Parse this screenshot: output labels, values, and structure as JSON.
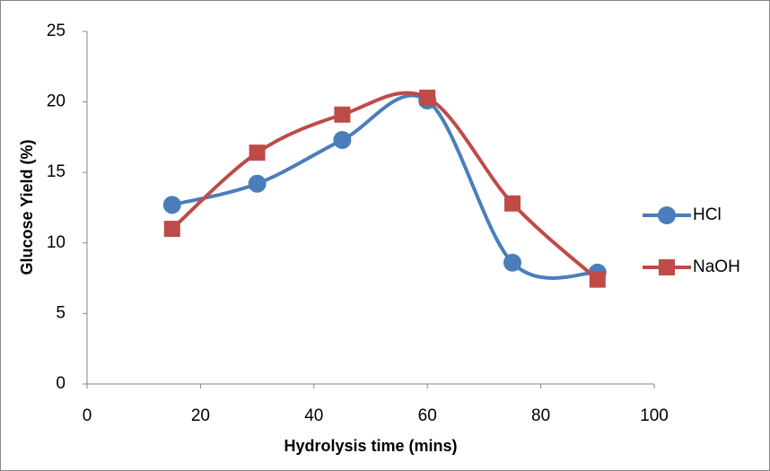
{
  "chart_data": {
    "type": "line",
    "x_label": "Hydrolysis time (mins)",
    "y_label": "Glucose Yield (%)",
    "x": [
      15,
      30,
      45,
      60,
      75,
      90
    ],
    "series": [
      {
        "name": "HCl",
        "color": "#4a7ebb",
        "marker": "circle",
        "values": [
          12.7,
          14.2,
          17.3,
          20.1,
          8.6,
          7.9
        ]
      },
      {
        "name": "NaOH",
        "color": "#be4b48",
        "marker": "square",
        "values": [
          11.0,
          16.4,
          19.1,
          20.3,
          12.8,
          7.4
        ]
      }
    ],
    "xlim": [
      0,
      100
    ],
    "xticks": [
      0,
      20,
      40,
      60,
      80,
      100
    ],
    "ylim": [
      0,
      25
    ],
    "yticks": [
      0,
      5,
      10,
      15,
      20,
      25
    ],
    "smooth": true,
    "grid": false,
    "legend": "right"
  }
}
